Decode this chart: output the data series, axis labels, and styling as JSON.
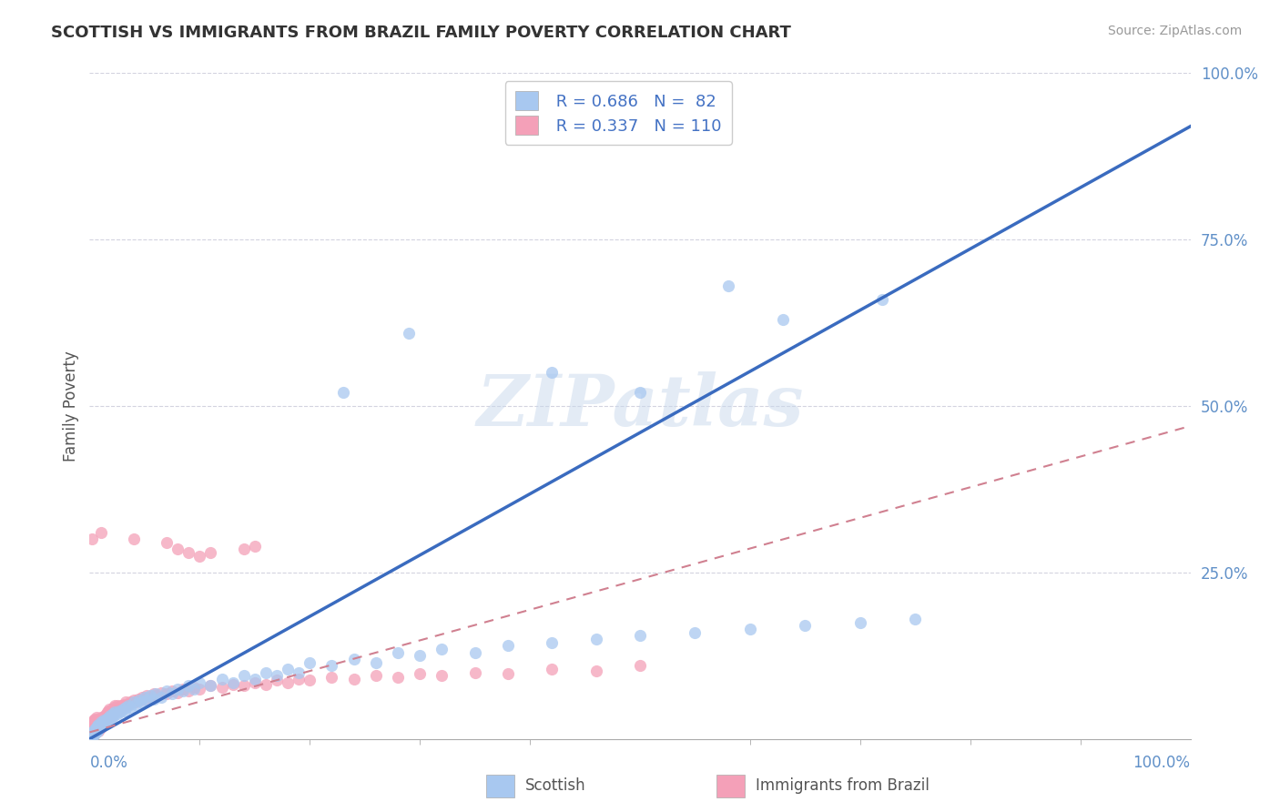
{
  "title": "SCOTTISH VS IMMIGRANTS FROM BRAZIL FAMILY POVERTY CORRELATION CHART",
  "source": "Source: ZipAtlas.com",
  "ylabel": "Family Poverty",
  "watermark": "ZIPatlas",
  "scottish_color": "#A8C8F0",
  "brazil_color": "#F4A0B8",
  "line_scottish": "#3A6BBF",
  "line_brazil": "#D08090",
  "grid_color": "#C8C8D8",
  "axis_label_color": "#6090C8",
  "title_color": "#333333",
  "ylabel_color": "#555555",
  "legend_text_color": "#4472C4",
  "source_color": "#999999",
  "bottom_label_color": "#555555",
  "scottish_regression": [
    0.0,
    0.0,
    1.0,
    0.92
  ],
  "brazil_regression": [
    0.0,
    0.01,
    1.0,
    0.47
  ],
  "scatter_size": 90,
  "scatter_alpha": 0.75,
  "ytick_labels": [
    "25.0%",
    "50.0%",
    "75.0%",
    "100.0%"
  ],
  "ytick_positions": [
    0.25,
    0.5,
    0.75,
    1.0
  ],
  "scottish_points": [
    [
      0.001,
      0.005
    ],
    [
      0.002,
      0.008
    ],
    [
      0.003,
      0.004
    ],
    [
      0.003,
      0.01
    ],
    [
      0.004,
      0.006
    ],
    [
      0.004,
      0.012
    ],
    [
      0.005,
      0.008
    ],
    [
      0.005,
      0.015
    ],
    [
      0.006,
      0.01
    ],
    [
      0.006,
      0.018
    ],
    [
      0.007,
      0.012
    ],
    [
      0.007,
      0.02
    ],
    [
      0.008,
      0.015
    ],
    [
      0.008,
      0.022
    ],
    [
      0.009,
      0.016
    ],
    [
      0.01,
      0.02
    ],
    [
      0.01,
      0.025
    ],
    [
      0.012,
      0.022
    ],
    [
      0.013,
      0.028
    ],
    [
      0.014,
      0.025
    ],
    [
      0.015,
      0.03
    ],
    [
      0.016,
      0.028
    ],
    [
      0.017,
      0.032
    ],
    [
      0.018,
      0.03
    ],
    [
      0.019,
      0.035
    ],
    [
      0.02,
      0.032
    ],
    [
      0.021,
      0.038
    ],
    [
      0.022,
      0.035
    ],
    [
      0.023,
      0.04
    ],
    [
      0.025,
      0.038
    ],
    [
      0.027,
      0.042
    ],
    [
      0.028,
      0.04
    ],
    [
      0.03,
      0.045
    ],
    [
      0.032,
      0.042
    ],
    [
      0.033,
      0.048
    ],
    [
      0.035,
      0.05
    ],
    [
      0.037,
      0.048
    ],
    [
      0.04,
      0.055
    ],
    [
      0.042,
      0.052
    ],
    [
      0.045,
      0.058
    ],
    [
      0.047,
      0.056
    ],
    [
      0.05,
      0.062
    ],
    [
      0.052,
      0.058
    ],
    [
      0.055,
      0.065
    ],
    [
      0.058,
      0.06
    ],
    [
      0.06,
      0.068
    ],
    [
      0.065,
      0.062
    ],
    [
      0.07,
      0.072
    ],
    [
      0.075,
      0.068
    ],
    [
      0.08,
      0.075
    ],
    [
      0.085,
      0.072
    ],
    [
      0.09,
      0.08
    ],
    [
      0.095,
      0.075
    ],
    [
      0.1,
      0.085
    ],
    [
      0.11,
      0.08
    ],
    [
      0.12,
      0.09
    ],
    [
      0.13,
      0.085
    ],
    [
      0.14,
      0.095
    ],
    [
      0.15,
      0.09
    ],
    [
      0.16,
      0.1
    ],
    [
      0.17,
      0.095
    ],
    [
      0.18,
      0.105
    ],
    [
      0.19,
      0.1
    ],
    [
      0.2,
      0.115
    ],
    [
      0.22,
      0.11
    ],
    [
      0.24,
      0.12
    ],
    [
      0.26,
      0.115
    ],
    [
      0.28,
      0.13
    ],
    [
      0.3,
      0.125
    ],
    [
      0.32,
      0.135
    ],
    [
      0.35,
      0.13
    ],
    [
      0.38,
      0.14
    ],
    [
      0.42,
      0.145
    ],
    [
      0.46,
      0.15
    ],
    [
      0.5,
      0.155
    ],
    [
      0.55,
      0.16
    ],
    [
      0.6,
      0.165
    ],
    [
      0.65,
      0.17
    ],
    [
      0.7,
      0.175
    ],
    [
      0.75,
      0.18
    ],
    [
      0.23,
      0.52
    ],
    [
      0.29,
      0.61
    ],
    [
      0.42,
      0.55
    ],
    [
      0.5,
      0.52
    ],
    [
      0.58,
      0.68
    ],
    [
      0.63,
      0.63
    ],
    [
      0.72,
      0.66
    ]
  ],
  "brazil_points": [
    [
      0.001,
      0.005
    ],
    [
      0.001,
      0.01
    ],
    [
      0.002,
      0.008
    ],
    [
      0.002,
      0.015
    ],
    [
      0.002,
      0.02
    ],
    [
      0.003,
      0.005
    ],
    [
      0.003,
      0.01
    ],
    [
      0.003,
      0.018
    ],
    [
      0.003,
      0.025
    ],
    [
      0.004,
      0.008
    ],
    [
      0.004,
      0.012
    ],
    [
      0.004,
      0.02
    ],
    [
      0.004,
      0.028
    ],
    [
      0.005,
      0.01
    ],
    [
      0.005,
      0.015
    ],
    [
      0.005,
      0.022
    ],
    [
      0.005,
      0.03
    ],
    [
      0.006,
      0.012
    ],
    [
      0.006,
      0.018
    ],
    [
      0.006,
      0.025
    ],
    [
      0.006,
      0.032
    ],
    [
      0.007,
      0.015
    ],
    [
      0.007,
      0.02
    ],
    [
      0.007,
      0.028
    ],
    [
      0.008,
      0.012
    ],
    [
      0.008,
      0.018
    ],
    [
      0.008,
      0.025
    ],
    [
      0.009,
      0.015
    ],
    [
      0.009,
      0.022
    ],
    [
      0.009,
      0.03
    ],
    [
      0.01,
      0.018
    ],
    [
      0.01,
      0.025
    ],
    [
      0.01,
      0.032
    ],
    [
      0.011,
      0.02
    ],
    [
      0.011,
      0.028
    ],
    [
      0.012,
      0.022
    ],
    [
      0.012,
      0.03
    ],
    [
      0.013,
      0.025
    ],
    [
      0.013,
      0.032
    ],
    [
      0.014,
      0.028
    ],
    [
      0.014,
      0.035
    ],
    [
      0.015,
      0.03
    ],
    [
      0.015,
      0.038
    ],
    [
      0.016,
      0.032
    ],
    [
      0.016,
      0.04
    ],
    [
      0.017,
      0.035
    ],
    [
      0.017,
      0.042
    ],
    [
      0.018,
      0.038
    ],
    [
      0.018,
      0.045
    ],
    [
      0.019,
      0.04
    ],
    [
      0.02,
      0.035
    ],
    [
      0.02,
      0.042
    ],
    [
      0.021,
      0.038
    ],
    [
      0.021,
      0.045
    ],
    [
      0.022,
      0.04
    ],
    [
      0.022,
      0.048
    ],
    [
      0.023,
      0.042
    ],
    [
      0.023,
      0.05
    ],
    [
      0.024,
      0.045
    ],
    [
      0.025,
      0.042
    ],
    [
      0.025,
      0.05
    ],
    [
      0.026,
      0.045
    ],
    [
      0.027,
      0.048
    ],
    [
      0.028,
      0.045
    ],
    [
      0.029,
      0.05
    ],
    [
      0.03,
      0.048
    ],
    [
      0.031,
      0.052
    ],
    [
      0.032,
      0.05
    ],
    [
      0.033,
      0.055
    ],
    [
      0.035,
      0.052
    ],
    [
      0.037,
      0.055
    ],
    [
      0.04,
      0.058
    ],
    [
      0.042,
      0.055
    ],
    [
      0.044,
      0.06
    ],
    [
      0.046,
      0.058
    ],
    [
      0.048,
      0.062
    ],
    [
      0.05,
      0.06
    ],
    [
      0.052,
      0.065
    ],
    [
      0.055,
      0.062
    ],
    [
      0.058,
      0.068
    ],
    [
      0.06,
      0.065
    ],
    [
      0.065,
      0.07
    ],
    [
      0.07,
      0.068
    ],
    [
      0.075,
      0.072
    ],
    [
      0.08,
      0.07
    ],
    [
      0.085,
      0.075
    ],
    [
      0.09,
      0.072
    ],
    [
      0.095,
      0.078
    ],
    [
      0.1,
      0.075
    ],
    [
      0.11,
      0.08
    ],
    [
      0.12,
      0.078
    ],
    [
      0.13,
      0.082
    ],
    [
      0.14,
      0.08
    ],
    [
      0.15,
      0.085
    ],
    [
      0.16,
      0.082
    ],
    [
      0.17,
      0.088
    ],
    [
      0.18,
      0.085
    ],
    [
      0.19,
      0.09
    ],
    [
      0.2,
      0.088
    ],
    [
      0.22,
      0.092
    ],
    [
      0.24,
      0.09
    ],
    [
      0.26,
      0.095
    ],
    [
      0.28,
      0.092
    ],
    [
      0.3,
      0.098
    ],
    [
      0.32,
      0.095
    ],
    [
      0.35,
      0.1
    ],
    [
      0.38,
      0.098
    ],
    [
      0.42,
      0.105
    ],
    [
      0.46,
      0.102
    ],
    [
      0.5,
      0.11
    ],
    [
      0.002,
      0.3
    ],
    [
      0.01,
      0.31
    ],
    [
      0.04,
      0.3
    ],
    [
      0.07,
      0.295
    ],
    [
      0.08,
      0.285
    ],
    [
      0.09,
      0.28
    ],
    [
      0.1,
      0.275
    ],
    [
      0.11,
      0.28
    ],
    [
      0.14,
      0.285
    ],
    [
      0.15,
      0.29
    ]
  ]
}
